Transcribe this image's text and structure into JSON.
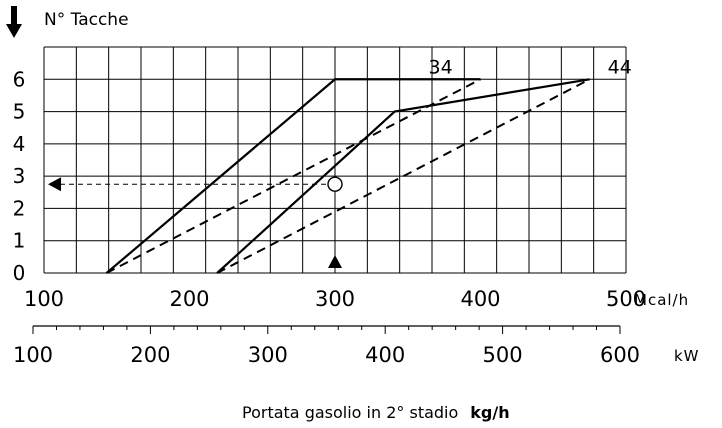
{
  "chart_data": {
    "type": "line",
    "ylabel": "N° Tacche",
    "xlabel_bottom": "Portata gasolio in 2° stadio",
    "xlabel_bottom_unit": "kg/h",
    "x_axis_mcal": {
      "unit": "Mcal/h",
      "ticks": [
        "100",
        "200",
        "300",
        "400",
        "500"
      ],
      "range": [
        100,
        500
      ]
    },
    "x_axis_kw": {
      "unit": "kW",
      "ticks": [
        "100",
        "200",
        "300",
        "400",
        "500",
        "600"
      ],
      "range": [
        100,
        600
      ]
    },
    "y_axis": {
      "ticks": [
        "0",
        "1",
        "2",
        "3",
        "4",
        "5",
        "6"
      ],
      "range": [
        0,
        7
      ]
    },
    "grid": true,
    "series": [
      {
        "name": "34",
        "solid": [
          {
            "x": 143,
            "y": 0
          },
          {
            "x": 300,
            "y": 6
          },
          {
            "x": 400,
            "y": 6
          }
        ],
        "dashed": [
          {
            "x": 143,
            "y": 0
          },
          {
            "x": 400,
            "y": 6
          }
        ]
      },
      {
        "name": "44",
        "solid": [
          {
            "x": 219,
            "y": 0
          },
          {
            "x": 341,
            "y": 5
          },
          {
            "x": 475,
            "y": 6
          }
        ],
        "dashed": [
          {
            "x": 219,
            "y": 0
          },
          {
            "x": 475,
            "y": 6
          }
        ]
      }
    ],
    "example": {
      "x": 300,
      "y": 2.75
    }
  }
}
